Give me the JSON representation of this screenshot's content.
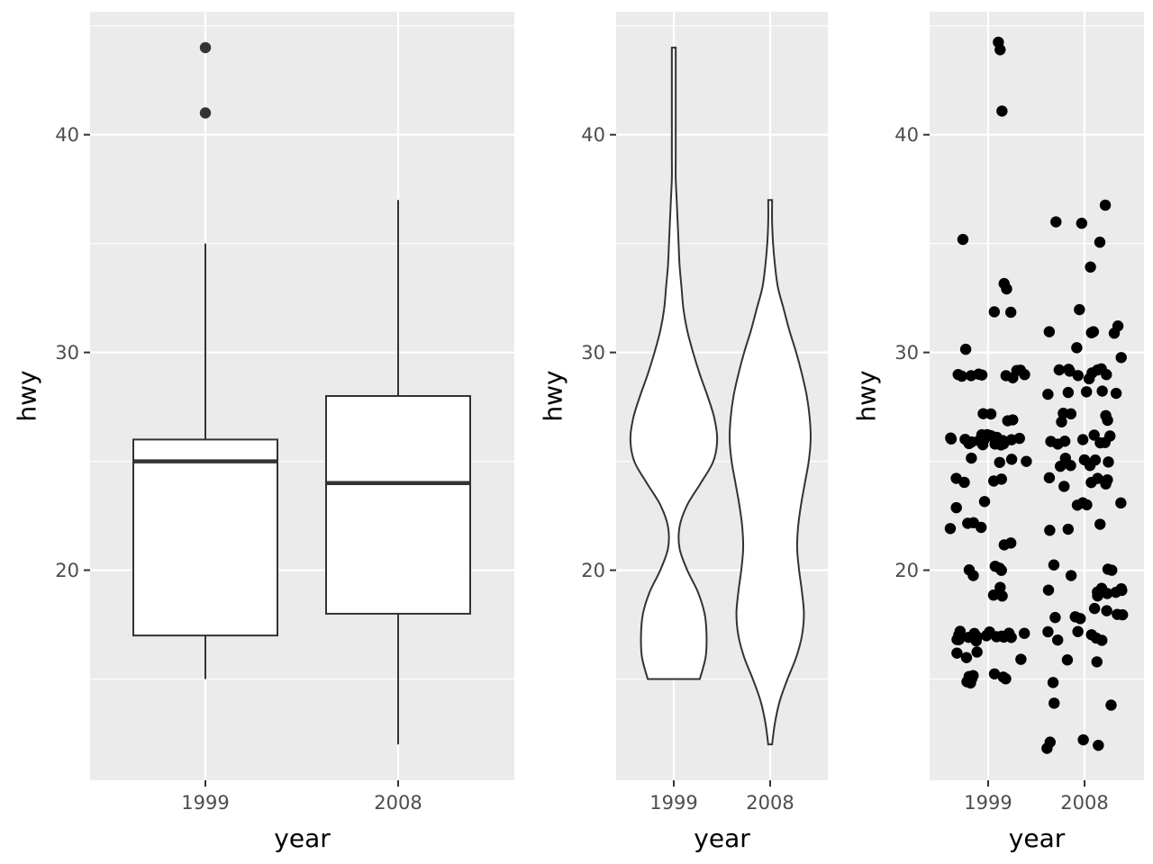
{
  "chart_data": [
    {
      "type": "box",
      "xlabel": "year",
      "ylabel": "hwy",
      "categories": [
        "1999",
        "2008"
      ],
      "yticks": [
        20,
        30,
        40
      ],
      "ylim": [
        10.35,
        45.65
      ],
      "boxes": [
        {
          "category": "1999",
          "lower_whisker": 15,
          "q1": 17,
          "median": 25,
          "q3": 26,
          "upper_whisker": 35,
          "outliers": [
            44,
            41
          ]
        },
        {
          "category": "2008",
          "lower_whisker": 12,
          "q1": 18,
          "median": 24,
          "q3": 28,
          "upper_whisker": 37,
          "outliers": []
        }
      ]
    },
    {
      "type": "violin",
      "xlabel": "year",
      "ylabel": "hwy",
      "categories": [
        "1999",
        "2008"
      ],
      "yticks": [
        20,
        30,
        40
      ],
      "ylim": [
        10.35,
        45.65
      ],
      "violins": [
        {
          "category": "1999",
          "min": 15,
          "max": 44,
          "y": [
            15,
            16,
            17,
            18,
            19,
            20,
            21,
            22,
            23,
            24,
            25,
            26,
            27,
            28,
            29,
            30,
            31,
            32,
            33,
            34,
            35,
            36,
            37,
            38,
            39,
            40,
            41,
            42,
            43,
            44
          ],
          "half_width": [
            0.27,
            0.33,
            0.34,
            0.32,
            0.25,
            0.14,
            0.06,
            0.06,
            0.14,
            0.28,
            0.41,
            0.45,
            0.42,
            0.35,
            0.27,
            0.2,
            0.14,
            0.1,
            0.08,
            0.06,
            0.05,
            0.04,
            0.03,
            0.02,
            0.02,
            0.02,
            0.02,
            0.02,
            0.02,
            0.02
          ]
        },
        {
          "category": "2008",
          "min": 12,
          "max": 37,
          "y": [
            12,
            13,
            14,
            15,
            16,
            17,
            18,
            19,
            20,
            21,
            22,
            23,
            24,
            25,
            26,
            27,
            28,
            29,
            30,
            31,
            32,
            33,
            34,
            35,
            36,
            37
          ],
          "half_width": [
            0.02,
            0.05,
            0.1,
            0.18,
            0.27,
            0.33,
            0.35,
            0.33,
            0.3,
            0.28,
            0.29,
            0.32,
            0.36,
            0.4,
            0.42,
            0.41,
            0.38,
            0.33,
            0.27,
            0.2,
            0.14,
            0.08,
            0.05,
            0.03,
            0.02,
            0.02
          ]
        }
      ]
    },
    {
      "type": "scatter",
      "xlabel": "year",
      "ylabel": "hwy",
      "categories": [
        "1999",
        "2008"
      ],
      "yticks": [
        20,
        30,
        40
      ],
      "ylim": [
        10.35,
        45.65
      ],
      "jitter": 0.4,
      "points": [
        {
          "category": "1999",
          "values": [
            44,
            44,
            41,
            35,
            33,
            33,
            32,
            32,
            30,
            29,
            29,
            29,
            29,
            29,
            29,
            29,
            29,
            29,
            29,
            27,
            27,
            27,
            27,
            26,
            26,
            26,
            26,
            26,
            26,
            26,
            26,
            26,
            26,
            26,
            26,
            26,
            26,
            26,
            26,
            26,
            26,
            26,
            26,
            26,
            25,
            25,
            25,
            25,
            24,
            24,
            24,
            24,
            23,
            23,
            22,
            22,
            22,
            22,
            21,
            21,
            20,
            20,
            20,
            20,
            20,
            19,
            19,
            19,
            17,
            17,
            17,
            17,
            17,
            17,
            17,
            17,
            17,
            17,
            17,
            17,
            17,
            17,
            17,
            17,
            16,
            16,
            16,
            16,
            15,
            15,
            15,
            15,
            15,
            15,
            15,
            15
          ]
        },
        {
          "category": "2008",
          "values": [
            37,
            36,
            36,
            35,
            34,
            32,
            31,
            31,
            31,
            31,
            31,
            30,
            30,
            29,
            29,
            29,
            29,
            29,
            29,
            29,
            29,
            29,
            28,
            28,
            28,
            28,
            28,
            27,
            27,
            27,
            27,
            27,
            26,
            26,
            26,
            26,
            26,
            26,
            26,
            26,
            25,
            25,
            25,
            25,
            25,
            25,
            25,
            24,
            24,
            24,
            24,
            24,
            24,
            23,
            23,
            23,
            23,
            22,
            22,
            22,
            20,
            20,
            20,
            20,
            19,
            19,
            19,
            19,
            19,
            19,
            19,
            19,
            18,
            18,
            18,
            18,
            18,
            18,
            18,
            17,
            17,
            17,
            17,
            17,
            17,
            16,
            16,
            15,
            14,
            14,
            12,
            12,
            12,
            12
          ]
        }
      ]
    }
  ]
}
